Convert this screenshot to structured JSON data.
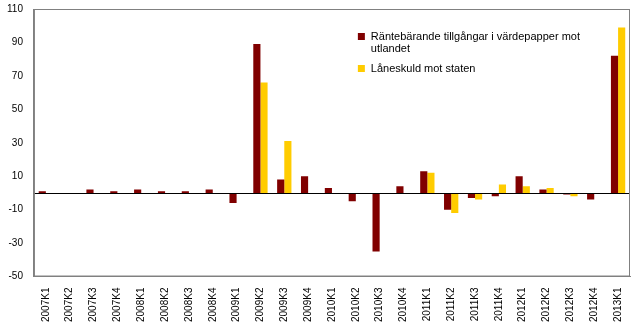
{
  "chart_data": {
    "type": "bar",
    "categories": [
      "2007K1",
      "2007K2",
      "2007K3",
      "2007K4",
      "2008K1",
      "2008K2",
      "2008K3",
      "2008K4",
      "2009K1",
      "2009K2",
      "2009K3",
      "2009K4",
      "2010K1",
      "2010K2",
      "2010K3",
      "2010K4",
      "2011K1",
      "2011K2",
      "2011K3",
      "2011K4",
      "2012K1",
      "2012K2",
      "2012K3",
      "2012K4",
      "2013K1"
    ],
    "series": [
      {
        "name": "Räntebärande tillgångar i värdepapper mot utlandet",
        "color": "#800000",
        "values": [
          1,
          0,
          2,
          1,
          2,
          1,
          1,
          2,
          -6,
          89,
          8,
          10,
          3,
          -5,
          -35,
          4,
          13,
          -10,
          -3,
          -2,
          10,
          2,
          -1,
          -4,
          82
        ]
      },
      {
        "name": "Låneskuld mot staten",
        "color": "#ffcc00",
        "values": [
          0,
          0,
          0,
          0,
          0,
          0,
          0,
          0,
          0,
          66,
          31,
          0,
          0,
          0,
          0,
          0,
          12,
          -12,
          -4,
          5,
          4,
          3,
          -2,
          0,
          99
        ]
      }
    ],
    "ylim": [
      -50,
      110
    ],
    "yticks": [
      -50,
      -30,
      -10,
      10,
      30,
      50,
      70,
      90,
      110
    ],
    "grid": false,
    "legend": "top-right"
  }
}
